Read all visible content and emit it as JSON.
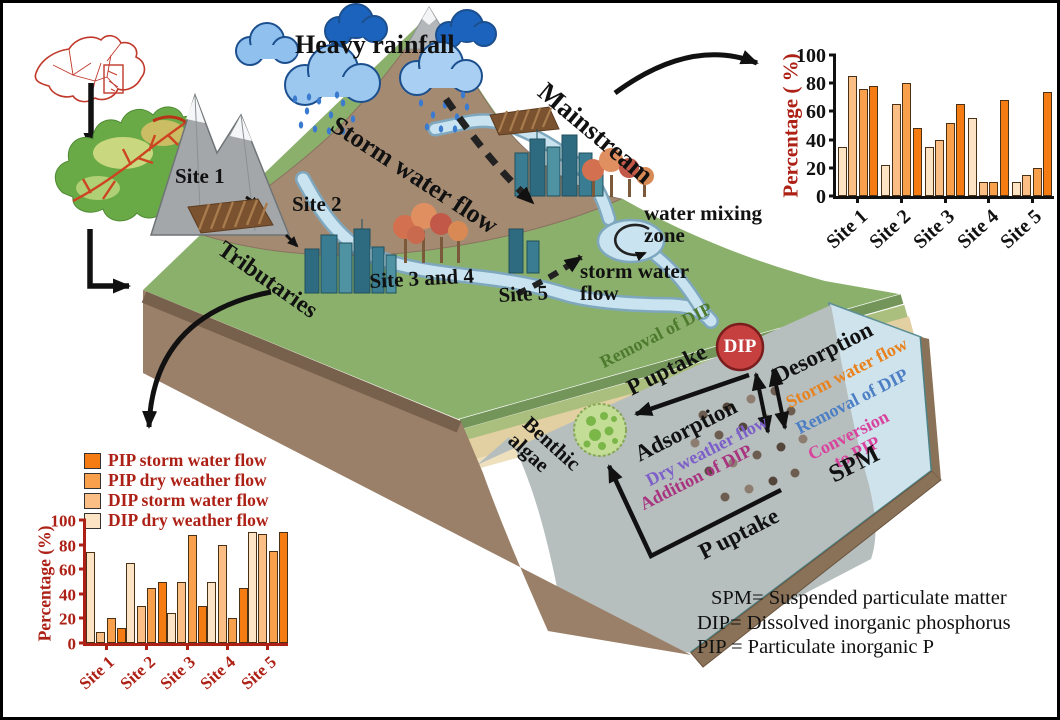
{
  "labels": {
    "heavy_rainfall": "Heavy rainfall",
    "storm_water_flow": "Storm water flow",
    "mainstream": "Mainstream",
    "site1": "Site 1",
    "site2": "Site 2",
    "site34": "Site 3 and 4",
    "site5": "Site 5",
    "tributaries": "Tributaries",
    "water_mixing_zone": "water mixing\nzone",
    "storm_water_flow_small": "storm water\nflow",
    "benthic_algae": "Benthic\nalgae",
    "p_uptake": "P uptake",
    "dip": "DIP",
    "spm": "SPM",
    "adsorption": "Adsorption",
    "desorption": "Desorption",
    "removal_of_dip": "Removal of DIP",
    "storm_water_flow_colored": "Storm water flow",
    "conversion_to_pip": "Conversion\nto PIP",
    "dry_weather_flow": "Dry weather flow",
    "addition_of_dip": "Addition of DIP"
  },
  "definitions": {
    "line1": "SPM= Suspended particulate matter",
    "line2": "DIP= Dissolved inorganic phosphorus",
    "line3": "PIP = Particulate inorganic P"
  },
  "colors": {
    "axis_red": "#ad2015",
    "axis_black": "#111111",
    "pip_storm": "#f57c13",
    "pip_dry": "#f9a04c",
    "dip_storm": "#fbbf85",
    "dip_dry": "#fce3c4",
    "dip_circle": "#c64040",
    "removal_green": "#4e7a2e",
    "storm_orange": "#e8821e",
    "removal_blue": "#4d7fc4",
    "conversion_pink": "#d8439e",
    "dry_purple": "#7c5fc9",
    "addition_magenta": "#a8347f"
  },
  "chart_data": [
    {
      "id": "mainstream-chart",
      "type": "bar",
      "title": "",
      "ylabel": "Percentage ( %)",
      "xlabel": "",
      "ylim": [
        0,
        100
      ],
      "yticks": [
        0,
        20,
        40,
        60,
        80,
        100
      ],
      "grid": false,
      "legend": false,
      "legend_position": "none",
      "categories": [
        "Site 1",
        "Site 2",
        "Site 3",
        "Site 4",
        "Site 5"
      ],
      "series": [
        {
          "name": "DIP dry weather flow",
          "color": "#fce3c4",
          "values": [
            35,
            22,
            35,
            55,
            10
          ]
        },
        {
          "name": "DIP storm water flow",
          "color": "#fbbf85",
          "values": [
            85,
            65,
            40,
            10,
            15
          ]
        },
        {
          "name": "PIP dry weather flow",
          "color": "#f9a04c",
          "values": [
            76,
            80,
            52,
            10,
            20
          ]
        },
        {
          "name": "PIP storm water flow",
          "color": "#f57c13",
          "values": [
            78,
            48,
            65,
            68,
            74
          ]
        }
      ]
    },
    {
      "id": "tributaries-chart",
      "type": "bar",
      "title": "",
      "ylabel": "Percentage (%)",
      "xlabel": "",
      "ylim": [
        0,
        100
      ],
      "yticks": [
        0,
        20,
        40,
        60,
        80,
        100
      ],
      "grid": false,
      "legend": true,
      "legend_position": "top-left",
      "legend_order": [
        "PIP storm water flow",
        "PIP dry weather flow",
        "DIP storm water flow",
        "DIP dry weather flow"
      ],
      "categories": [
        "Site 1",
        "Site 2",
        "Site 3",
        "Site 4",
        "Site 5"
      ],
      "series": [
        {
          "name": "DIP dry weather flow",
          "color": "#fce3c4",
          "values": [
            74,
            65,
            24,
            50,
            90
          ]
        },
        {
          "name": "DIP storm water flow",
          "color": "#fbbf85",
          "values": [
            9,
            30,
            50,
            80,
            89
          ]
        },
        {
          "name": "PIP dry weather flow",
          "color": "#f9a04c",
          "values": [
            20,
            45,
            88,
            20,
            75
          ]
        },
        {
          "name": "PIP storm water flow",
          "color": "#f57c13",
          "values": [
            12,
            50,
            30,
            45,
            90
          ]
        }
      ]
    }
  ]
}
